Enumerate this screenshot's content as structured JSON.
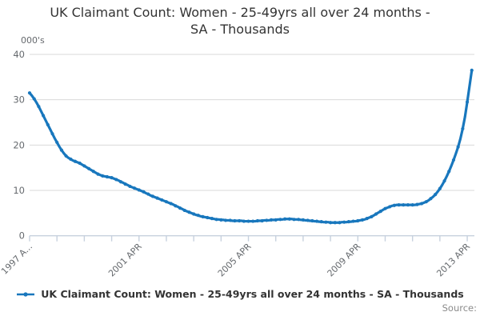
{
  "header": {
    "title_line1": "UK Claimant Count: Women - 25-49yrs all over 24 months -",
    "title_line2": "SA - Thousands"
  },
  "y_axis": {
    "unit_label": "000's",
    "ticks": [
      0,
      10,
      20,
      30,
      40
    ]
  },
  "x_axis": {
    "tick_labels": [
      "1997 A...",
      "2001 APR",
      "2005 APR",
      "2009 APR",
      "2013 APR"
    ],
    "minor_tick_every_months": 12,
    "label_every_months": 48
  },
  "legend": {
    "label": "UK Claimant Count: Women - 25-49yrs all over 24 months - SA - Thousands"
  },
  "footer": {
    "source_label": "Source:"
  },
  "colors": {
    "line": "#1877BD",
    "grid": "#D9D9D9",
    "axis": "#C7D1DE",
    "tick_text": "#666A6E"
  },
  "chart_data": {
    "type": "line",
    "title": "UK Claimant Count: Women - 25-49yrs all over 24 months - SA - Thousands",
    "ylabel": "000's",
    "ylim": [
      0,
      40
    ],
    "grid": "horizontal",
    "legend_position": "bottom",
    "frequency": "monthly",
    "start": "1997-04",
    "end": "2013-06",
    "marker": "dot",
    "values": [
      31.5,
      30.9,
      30.2,
      29.4,
      28.5,
      27.5,
      26.5,
      25.5,
      24.5,
      23.5,
      22.5,
      21.5,
      20.6,
      19.7,
      18.9,
      18.2,
      17.6,
      17.2,
      16.9,
      16.6,
      16.4,
      16.2,
      16.0,
      15.7,
      15.4,
      15.1,
      14.8,
      14.5,
      14.2,
      13.9,
      13.6,
      13.4,
      13.2,
      13.1,
      13.0,
      12.9,
      12.8,
      12.6,
      12.4,
      12.2,
      11.9,
      11.7,
      11.4,
      11.2,
      10.9,
      10.7,
      10.5,
      10.3,
      10.1,
      9.9,
      9.7,
      9.4,
      9.2,
      8.9,
      8.7,
      8.5,
      8.3,
      8.1,
      7.9,
      7.7,
      7.5,
      7.3,
      7.1,
      6.9,
      6.6,
      6.4,
      6.1,
      5.9,
      5.6,
      5.4,
      5.2,
      5.0,
      4.8,
      4.6,
      4.5,
      4.3,
      4.2,
      4.1,
      4.0,
      3.9,
      3.8,
      3.7,
      3.6,
      3.6,
      3.5,
      3.5,
      3.4,
      3.4,
      3.4,
      3.3,
      3.3,
      3.3,
      3.3,
      3.3,
      3.2,
      3.2,
      3.2,
      3.2,
      3.2,
      3.2,
      3.3,
      3.3,
      3.3,
      3.4,
      3.4,
      3.4,
      3.5,
      3.5,
      3.5,
      3.6,
      3.6,
      3.6,
      3.7,
      3.7,
      3.7,
      3.7,
      3.6,
      3.6,
      3.6,
      3.5,
      3.5,
      3.4,
      3.4,
      3.3,
      3.3,
      3.2,
      3.2,
      3.1,
      3.1,
      3.0,
      3.0,
      3.0,
      2.9,
      2.9,
      2.9,
      2.9,
      2.9,
      3.0,
      3.0,
      3.0,
      3.1,
      3.1,
      3.2,
      3.2,
      3.3,
      3.4,
      3.5,
      3.6,
      3.8,
      4.0,
      4.2,
      4.5,
      4.8,
      5.1,
      5.4,
      5.7,
      6.0,
      6.2,
      6.4,
      6.6,
      6.7,
      6.8,
      6.8,
      6.8,
      6.8,
      6.8,
      6.8,
      6.8,
      6.8,
      6.8,
      6.9,
      7.0,
      7.1,
      7.3,
      7.5,
      7.8,
      8.2,
      8.6,
      9.1,
      9.7,
      10.4,
      11.2,
      12.1,
      13.1,
      14.2,
      15.4,
      16.7,
      18.1,
      19.6,
      21.4,
      23.6,
      26.2,
      29.5,
      33.0,
      36.5
    ]
  }
}
